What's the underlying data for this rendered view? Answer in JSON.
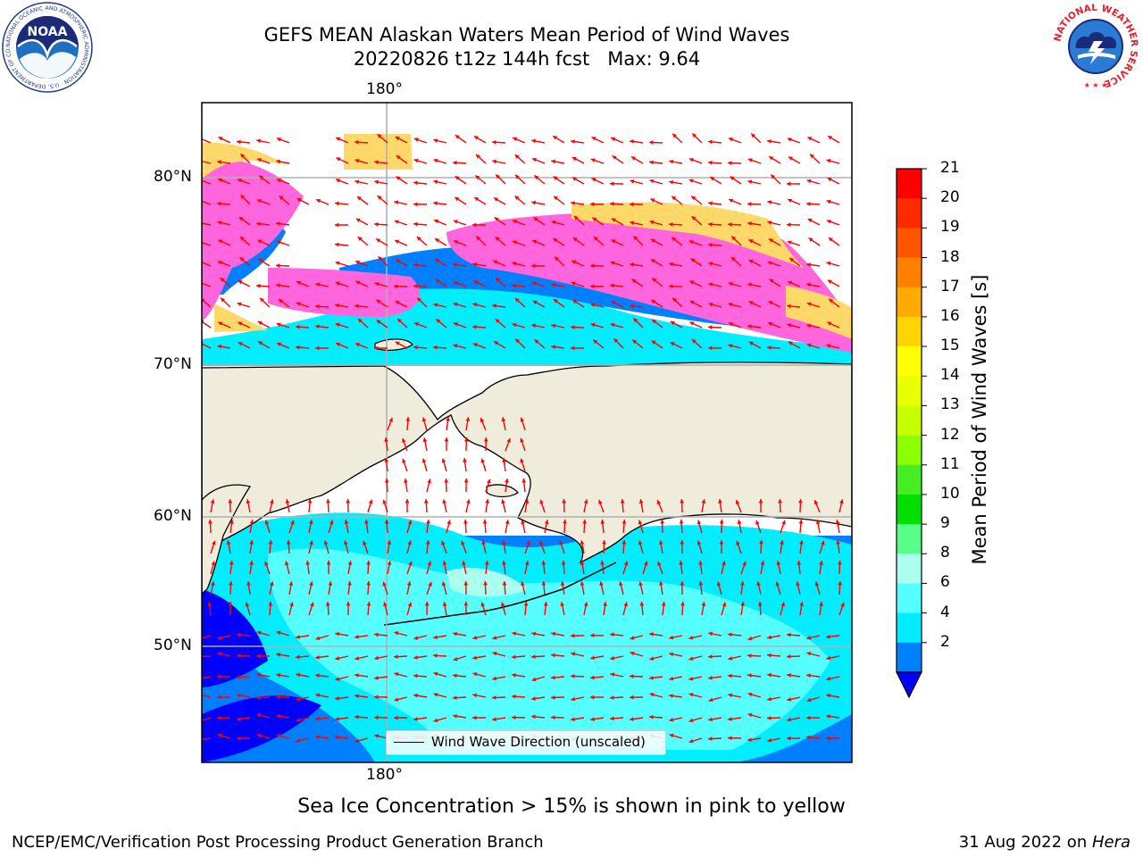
{
  "title": {
    "line1": "GEFS MEAN Alaskan Waters Mean Period of Wind Waves",
    "line2": "20220826 t12z 144h fcst   Max: 9.64"
  },
  "map": {
    "lon_label_top": "180°",
    "lon_label_bottom": "180°",
    "lat_labels": [
      "80°N",
      "70°N",
      "60°N",
      "50°N"
    ],
    "legend_text": "Wind Wave Direction (unscaled)",
    "arrow_color": "#ff0000",
    "land_color": "#efecdc",
    "grid_color": "#b0b0b0"
  },
  "colorbar": {
    "label": "Mean Period of Wind Waves [s]",
    "ticks": [
      "21",
      "20",
      "19",
      "18",
      "17",
      "16",
      "15",
      "14",
      "13",
      "12",
      "11",
      "10",
      "9",
      "8",
      "6",
      "4",
      "2"
    ],
    "colors_top_to_bottom": [
      "#ff0000",
      "#ff2a00",
      "#ff5500",
      "#ff7f00",
      "#ffaa00",
      "#ffd400",
      "#ffff00",
      "#e8ff00",
      "#c8ff00",
      "#8cff00",
      "#44ee22",
      "#00e000",
      "#55ff88",
      "#aaffee",
      "#55ffff",
      "#00eeff",
      "#0080ff"
    ],
    "extend_color": "#0000ff"
  },
  "subtitle": "Sea Ice Concentration > 15% is shown in pink to yellow",
  "footer": {
    "left": "NCEP/EMC/Verification Post Processing Product Generation Branch",
    "right_date": "31 Aug 2022 on ",
    "right_host": "Hera"
  },
  "logos": {
    "noaa_text": "NOAA",
    "noaa_ring": "NATIONAL OCEANIC AND ATMOSPHERIC ADMINISTRATION · U.S. DEPARTMENT OF COMMERCE",
    "nws_ring": "NATIONAL WEATHER SERVICE"
  }
}
